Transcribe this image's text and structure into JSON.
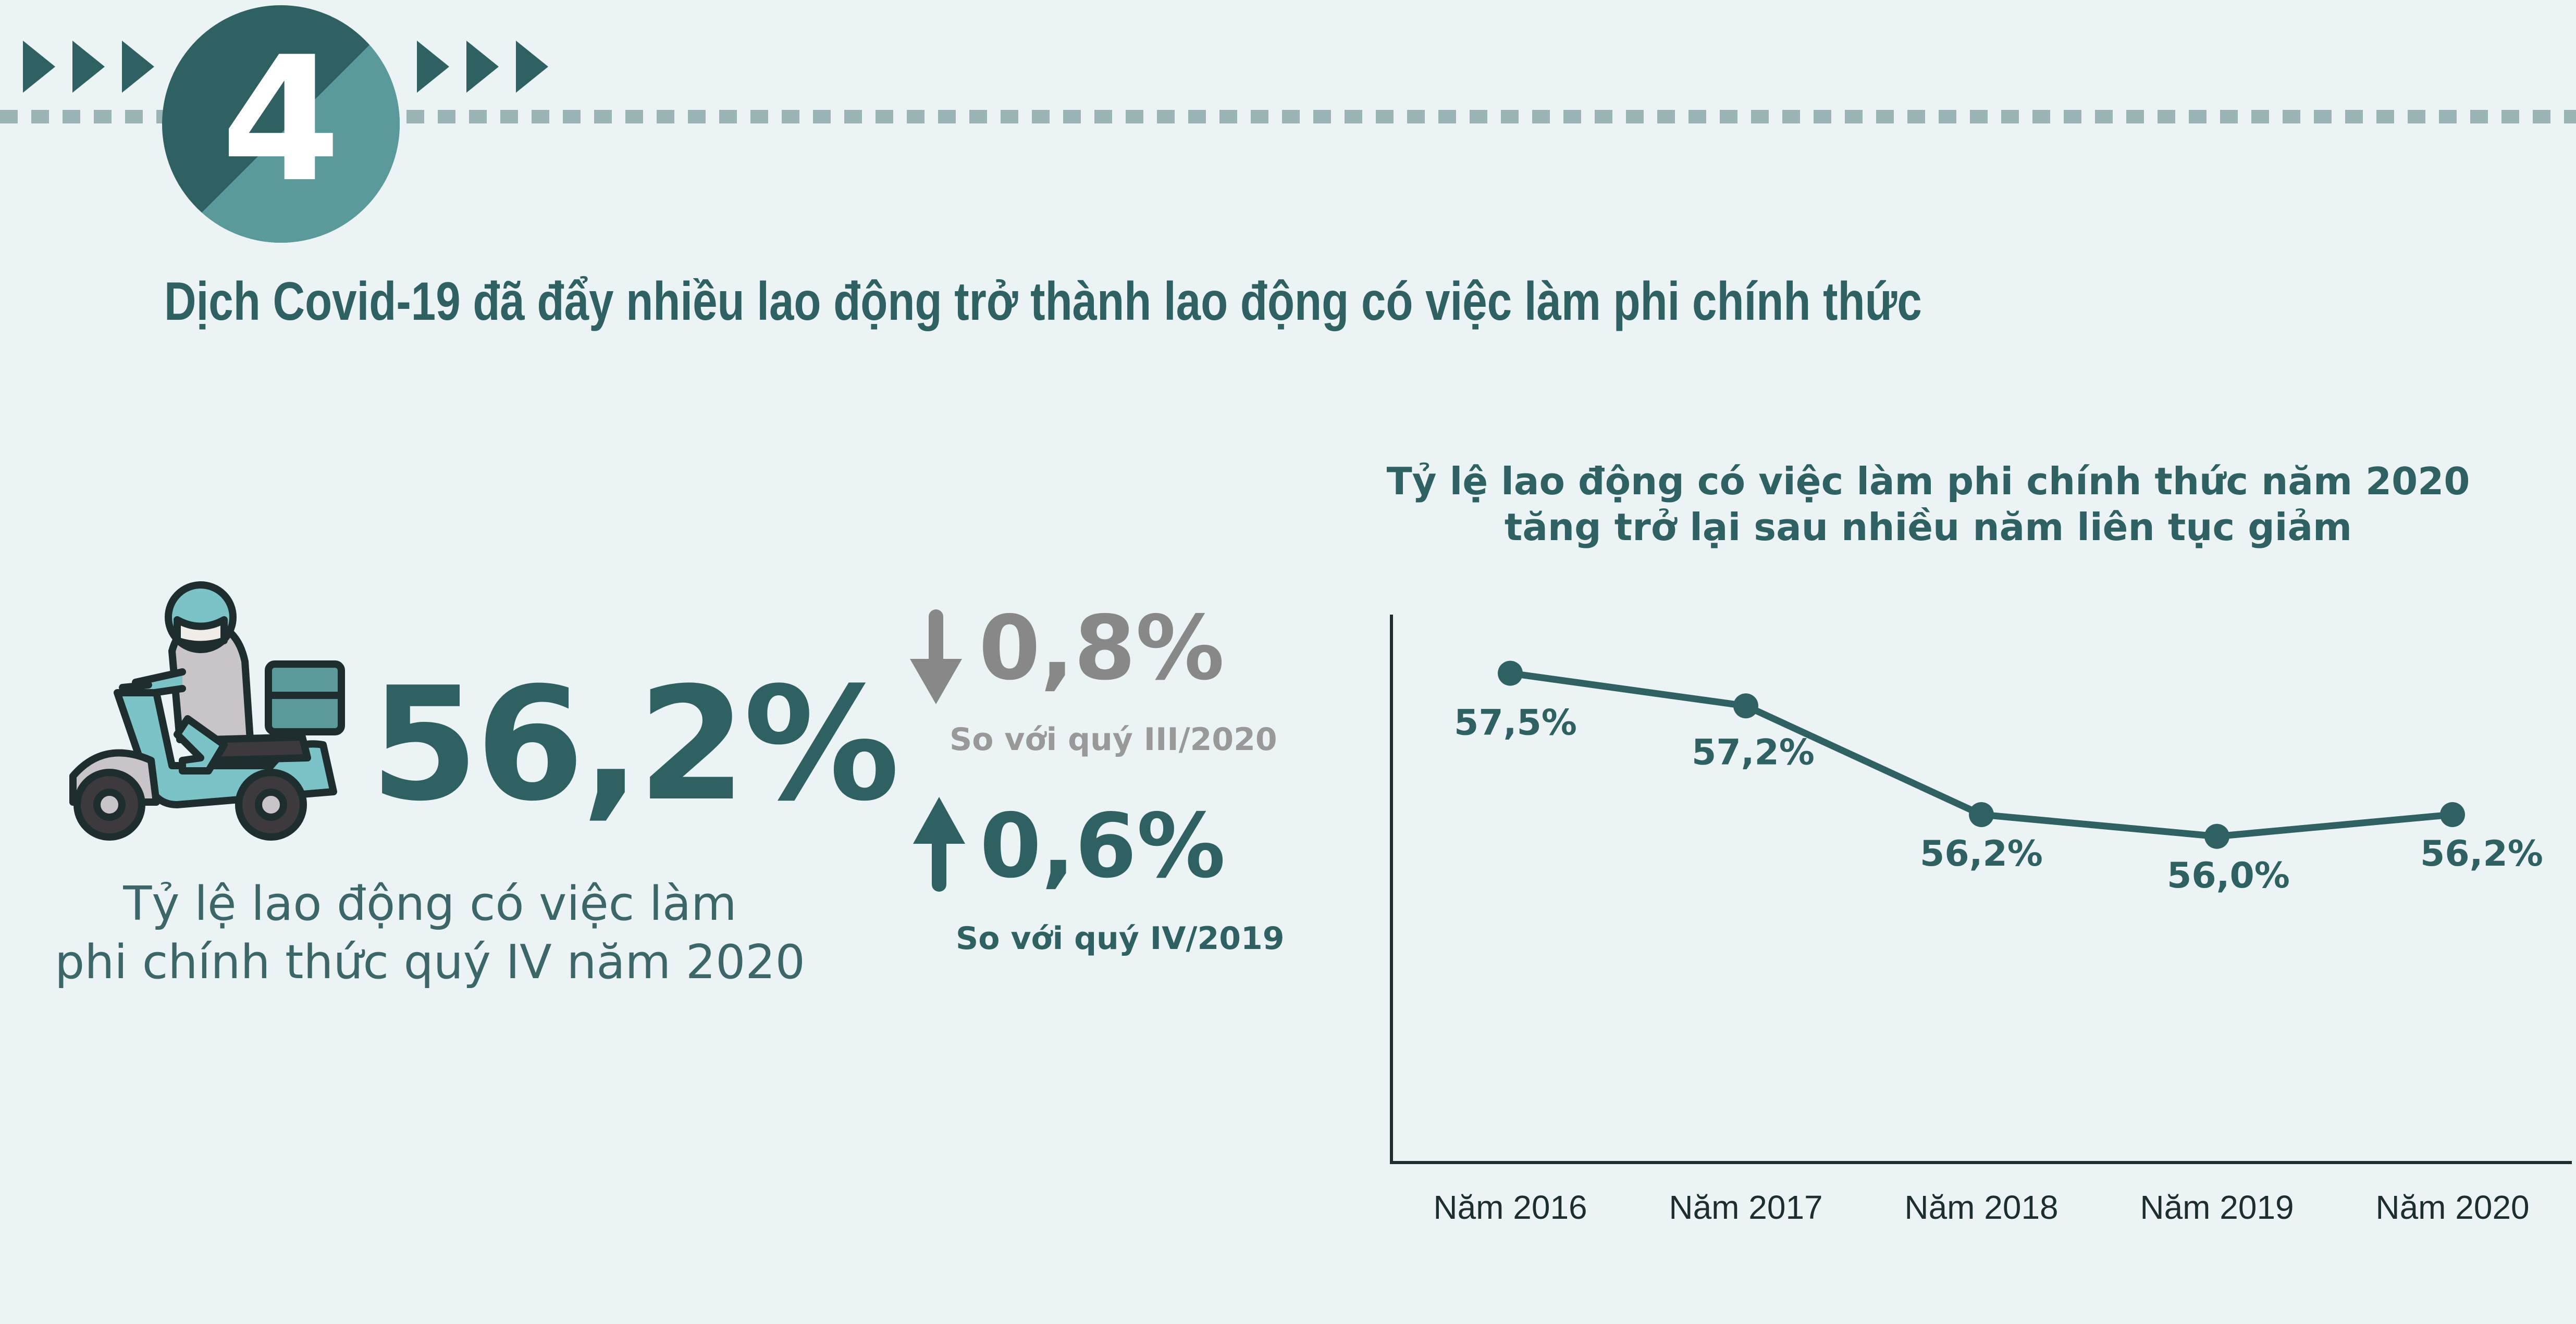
{
  "badge": {
    "number": "4"
  },
  "headline": "Dịch Covid-19 đã đẩy nhiều lao động trở thành lao động có việc làm phi chính thức",
  "highlight": {
    "value": "56,2%",
    "label_line1": "Tỷ lệ lao động có việc làm",
    "label_line2": "phi chính thức quý IV năm 2020"
  },
  "changes": [
    {
      "direction": "down",
      "value": "0,8%",
      "note": "So với quý III/2020",
      "color": "#888888"
    },
    {
      "direction": "up",
      "value": "0,6%",
      "note": "So với quý IV/2019",
      "color": "#2f6163"
    }
  ],
  "colors": {
    "primary": "#2f6163",
    "muted": "#888888",
    "accent": "#5a9a9a",
    "background": "#ebf3f4"
  },
  "chart_data": {
    "type": "line",
    "title_line1": "Tỷ lệ lao động có việc làm phi chính thức năm 2020",
    "title_line2": "tăng trở lại sau nhiều năm liên tục giảm",
    "categories": [
      "Năm 2016",
      "Năm 2017",
      "Năm 2018",
      "Năm 2019",
      "Năm 2020"
    ],
    "values": [
      57.5,
      57.2,
      56.2,
      56.0,
      56.2
    ],
    "data_labels": [
      "57,5%",
      "57,2%",
      "56,2%",
      "56,0%",
      "56,2%"
    ],
    "ylim": [
      53.0,
      57.8
    ],
    "grid": false,
    "legend": "none"
  }
}
